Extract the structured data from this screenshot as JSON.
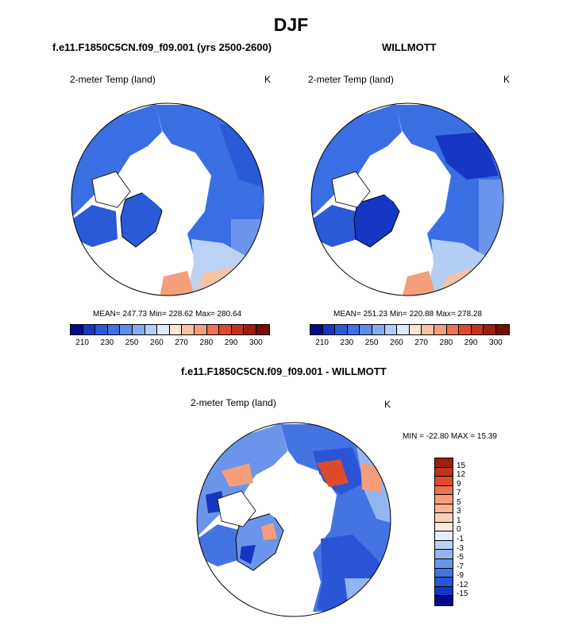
{
  "title": "DJF",
  "panels": {
    "left": {
      "case": "f.e11.F1850C5CN.f09_f09.001 (yrs 2500-2600)",
      "variable": "2-meter Temp (land)",
      "unit": "K",
      "stats": "MEAN= 247.73  Min= 228.62  Max= 280.64"
    },
    "right": {
      "case": "WILLMOTT",
      "variable": "2-meter Temp (land)",
      "unit": "K",
      "stats": "MEAN= 251.23  Min= 220.88  Max= 278.28"
    },
    "diff": {
      "case": "f.e11.F1850C5CN.f09_f09.001 - WILLMOTT",
      "variable": "2-meter Temp (land)",
      "unit": "K",
      "stats": "MIN = -22.80 MAX =  15.39"
    }
  },
  "chart_data": [
    {
      "type": "heatmap",
      "projection": "north-polar-stereographic",
      "title": "f.e11.F1850C5CN.f09_f09.001 (yrs 2500-2600)",
      "subtitle": "2-meter Temp (land)",
      "units": "K",
      "mean": 247.73,
      "min": 228.62,
      "max": 280.64,
      "colorbar": {
        "ticks": [
          "210",
          "230",
          "250",
          "260",
          "270",
          "280",
          "290",
          "300"
        ],
        "colors": [
          "#08088f",
          "#1537c4",
          "#2a5ad8",
          "#3d73e6",
          "#5b8de9",
          "#86acf0",
          "#b4cdf5",
          "#dde8fa",
          "#fde3d6",
          "#f9c1a4",
          "#f59e7b",
          "#ee7153",
          "#de4a2c",
          "#c1331a",
          "#9e1e0e",
          "#7a0d06"
        ]
      }
    },
    {
      "type": "heatmap",
      "projection": "north-polar-stereographic",
      "title": "WILLMOTT",
      "subtitle": "2-meter Temp (land)",
      "units": "K",
      "mean": 251.23,
      "min": 220.88,
      "max": 278.28,
      "colorbar": {
        "ticks": [
          "210",
          "230",
          "250",
          "260",
          "270",
          "280",
          "290",
          "300"
        ],
        "colors": [
          "#08088f",
          "#1537c4",
          "#2a5ad8",
          "#3d73e6",
          "#5b8de9",
          "#86acf0",
          "#b4cdf5",
          "#dde8fa",
          "#fde3d6",
          "#f9c1a4",
          "#f59e7b",
          "#ee7153",
          "#de4a2c",
          "#c1331a",
          "#9e1e0e",
          "#7a0d06"
        ]
      }
    },
    {
      "type": "heatmap",
      "projection": "north-polar-stereographic",
      "title": "f.e11.F1850C5CN.f09_f09.001 - WILLMOTT",
      "subtitle": "2-meter Temp (land)",
      "units": "K",
      "min": -22.8,
      "max": 15.39,
      "colorbar": {
        "ticks": [
          "15",
          "12",
          "9",
          "7",
          "5",
          "3",
          "1",
          "0",
          "-1",
          "-3",
          "-5",
          "-7",
          "-9",
          "-12",
          "-15"
        ],
        "colors": [
          "#9e1e0e",
          "#c1331a",
          "#de4a2c",
          "#ee7153",
          "#f59e7b",
          "#f9b395",
          "#fbd0b9",
          "#fde9de",
          "#e4edfb",
          "#bcd2f5",
          "#93b5ef",
          "#6a95ea",
          "#4474e2",
          "#2a55d6",
          "#1536c0",
          "#08088f"
        ]
      }
    }
  ]
}
